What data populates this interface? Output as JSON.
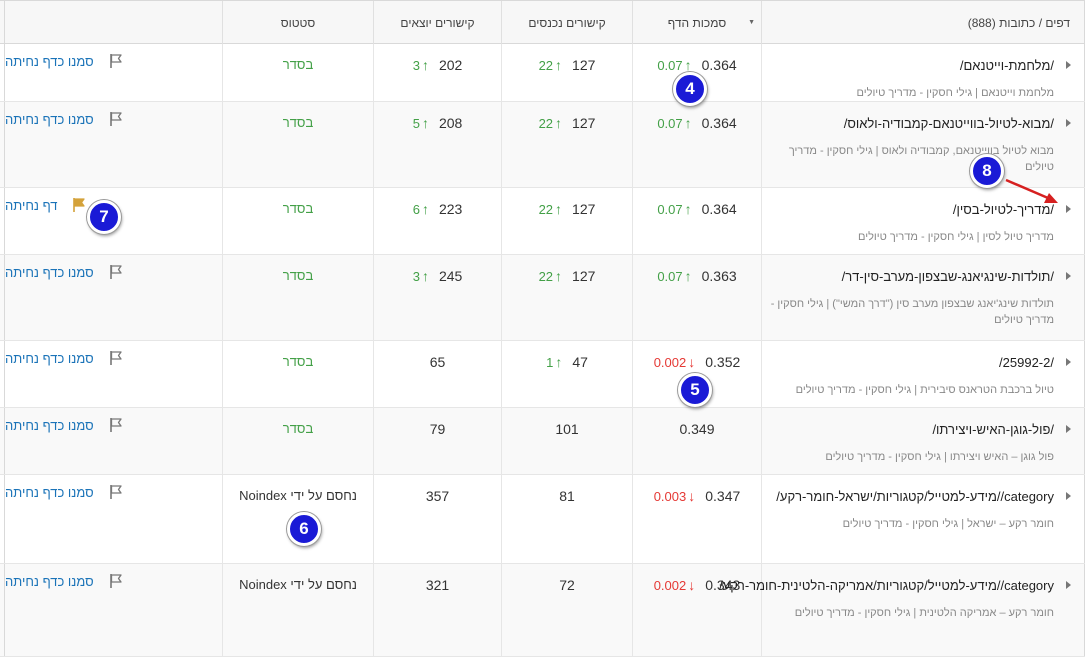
{
  "header": {
    "pages_col": "דפים / כתובות (888)",
    "authority_col": "סמכות הדף",
    "incoming_col": "קישורים נכנסים",
    "outgoing_col": "קישורים יוצאים",
    "status_col": "סטטוס"
  },
  "rows": [
    {
      "url": "/מלחמת-וייטנאם/",
      "title": "מלחמת וייטנאם | גילי חסקין - מדריך טיולים",
      "authority": "0.364",
      "authority_delta": "0.07",
      "authority_dir": "up",
      "incoming": "127",
      "incoming_delta": "22",
      "outgoing": "202",
      "outgoing_delta": "3",
      "status": "בסדר",
      "action": "סמנו כדף נחיתה",
      "flagged": false
    },
    {
      "url": "/מבוא-לטיול-בווייטנאם-קמבודיה-ולאוס/",
      "title": "מבוא לטיול בווייטנאם, קמבודיה ולאוס | גילי חסקין - מדריך טיולים",
      "authority": "0.364",
      "authority_delta": "0.07",
      "authority_dir": "up",
      "incoming": "127",
      "incoming_delta": "22",
      "outgoing": "208",
      "outgoing_delta": "5",
      "status": "בסדר",
      "action": "סמנו כדף נחיתה",
      "flagged": false
    },
    {
      "url": "/מדריך-לטיול-בסין/",
      "title": "מדריך טיול לסין | גילי חסקין - מדריך טיולים",
      "authority": "0.364",
      "authority_delta": "0.07",
      "authority_dir": "up",
      "incoming": "127",
      "incoming_delta": "22",
      "outgoing": "223",
      "outgoing_delta": "6",
      "status": "בסדר",
      "action": "דף נחיתה",
      "flagged": true
    },
    {
      "url": "/תולדות-שינגיאנג-שבצפון-מערב-סין-דר/",
      "title": "תולדות שינג'יאנג שבצפון מערב סין (\"דרך המשי\") | גילי חסקין - מדריך טיולים",
      "authority": "0.363",
      "authority_delta": "0.07",
      "authority_dir": "up",
      "incoming": "127",
      "incoming_delta": "22",
      "outgoing": "245",
      "outgoing_delta": "3",
      "status": "בסדר",
      "action": "סמנו כדף נחיתה",
      "flagged": false
    },
    {
      "url": "/25992-2/",
      "title": "טיול ברכבת הטראנס סיבירית | גילי חסקין - מדריך טיולים",
      "authority": "0.352",
      "authority_delta": "0.002",
      "authority_dir": "down",
      "incoming": "47",
      "incoming_delta": "1",
      "outgoing": "65",
      "outgoing_delta": "",
      "status": "בסדר",
      "action": "סמנו כדף נחיתה",
      "flagged": false
    },
    {
      "url": "/פול-גוגן-האיש-ויצירתו/",
      "title": "פול גוגן – האיש ויצירתו | גילי חסקין - מדריך טיולים",
      "authority": "0.349",
      "authority_delta": "",
      "authority_dir": "",
      "incoming": "101",
      "incoming_delta": "",
      "outgoing": "79",
      "outgoing_delta": "",
      "status": "בסדר",
      "action": "סמנו כדף נחיתה",
      "flagged": false
    },
    {
      "url": "category//מידע-למטייל/קטגוריות/ישראל-חומר-רקע/",
      "title": "חומר רקע – ישראל | גילי חסקין - מדריך טיולים",
      "authority": "0.347",
      "authority_delta": "0.003",
      "authority_dir": "down",
      "incoming": "81",
      "incoming_delta": "",
      "outgoing": "357",
      "outgoing_delta": "",
      "status": "נחסם על ידי Noindex",
      "action": "סמנו כדף נחיתה",
      "flagged": false
    },
    {
      "url": "category//מידע-למטייל/קטגוריות/אמריקה-הלטינית-חומר-רקע/",
      "title": "חומר רקע – אמריקה הלטינית | גילי חסקין - מדריך טיולים",
      "authority": "0.343",
      "authority_delta": "0.002",
      "authority_dir": "down",
      "incoming": "72",
      "incoming_delta": "",
      "outgoing": "321",
      "outgoing_delta": "",
      "status": "נחסם על ידי Noindex",
      "action": "סמנו כדף נחיתה",
      "flagged": false
    }
  ],
  "badges": [
    "4",
    "5",
    "6",
    "7",
    "8"
  ],
  "icons": {
    "flag": "flag-outline-icon",
    "flag_active": "flag-filled-icon",
    "expand": "caret-right-icon",
    "up": "arrow-up-icon",
    "down": "arrow-down-icon"
  },
  "colors": {
    "link": "#1a73b8",
    "ok": "#43a047",
    "up": "#43a047",
    "down": "#e53935",
    "badge": "#1a1ad6",
    "flag_active": "#d4a23a"
  }
}
